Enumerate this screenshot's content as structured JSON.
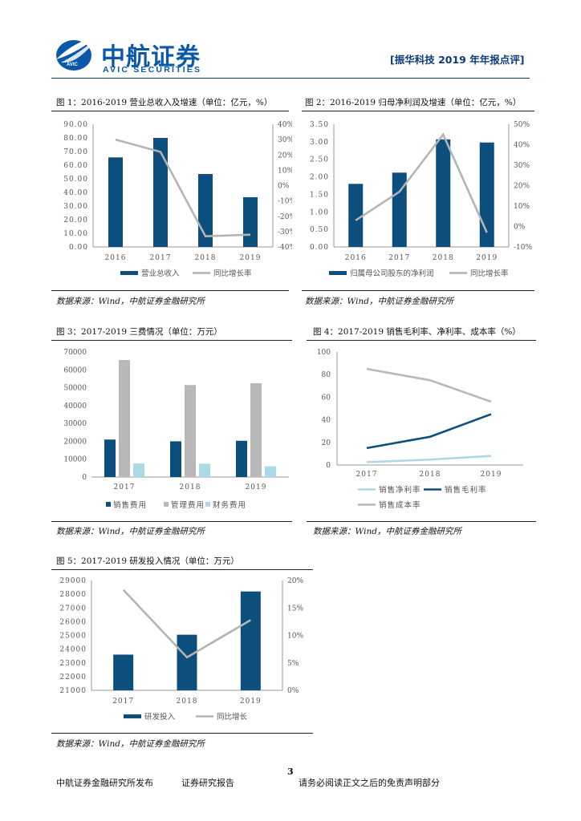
{
  "header": {
    "logo_cn": "中航证券",
    "logo_en": "AVIC SECURITIES",
    "logo_mark": "AVIC",
    "report_tag": "[振华科技 2019 年年报点评]"
  },
  "figures": [
    {
      "title": "图 1：2016-2019 营业总收入及增速（单位：亿元，%）",
      "source": "数据来源：Wind，中航证券金融研究所",
      "chart_data": {
        "type": "bar",
        "categories": [
          "2016",
          "2017",
          "2018",
          "2019"
        ],
        "series": [
          {
            "name": "营业总收入",
            "kind": "bar",
            "axis": "left",
            "values": [
              65.7,
              80.0,
              53.5,
              36.5
            ]
          },
          {
            "name": "同比增长率",
            "kind": "line",
            "axis": "right",
            "values": [
              30,
              22,
              -33,
              -32
            ]
          }
        ],
        "ylim_left": [
          0,
          90
        ],
        "yticks_left": [
          "0.00",
          "10.00",
          "20.00",
          "30.00",
          "40.00",
          "50.00",
          "60.00",
          "70.00",
          "80.00",
          "90.00"
        ],
        "ylim_right": [
          -40,
          40
        ],
        "yticks_right": [
          "-40%",
          "-30%",
          "-20%",
          "-10%",
          "0%",
          "10%",
          "20%",
          "30%",
          "40%"
        ],
        "legend": "bottom"
      }
    },
    {
      "title": "图 2：2016-2019 归母净利润及增速（单位：亿元，%）",
      "source": "数据来源：Wind，中航证券金融研究所",
      "chart_data": {
        "type": "bar",
        "categories": [
          "2016",
          "2017",
          "2018",
          "2019"
        ],
        "series": [
          {
            "name": "归属母公司股东的净利润",
            "kind": "bar",
            "axis": "left",
            "values": [
              1.8,
              2.12,
              3.07,
              2.98
            ]
          },
          {
            "name": "同比增长率",
            "kind": "line",
            "axis": "right",
            "values": [
              3,
              17,
              45,
              -3
            ]
          }
        ],
        "ylim_left": [
          0,
          3.5
        ],
        "yticks_left": [
          "0.00",
          "0.50",
          "1.00",
          "1.50",
          "2.00",
          "2.50",
          "3.00",
          "3.50"
        ],
        "ylim_right": [
          -10,
          50
        ],
        "yticks_right": [
          "-10%",
          "0%",
          "10%",
          "20%",
          "30%",
          "40%",
          "50%"
        ],
        "legend": "bottom"
      }
    },
    {
      "title": "图 3：2017-2019 三费情况（单位：万元）",
      "source": "数据来源：Wind，中航证券金融研究所",
      "chart_data": {
        "type": "bar",
        "categories": [
          "2017",
          "2018",
          "2019"
        ],
        "series": [
          {
            "name": "销售费用",
            "kind": "bar",
            "values": [
              21000,
              20000,
              20300
            ]
          },
          {
            "name": "管理费用",
            "kind": "bar",
            "values": [
              65500,
              51500,
              52500
            ]
          },
          {
            "name": "财务费用",
            "kind": "bar",
            "values": [
              7600,
              7500,
              6000
            ]
          }
        ],
        "ylim": [
          0,
          70000
        ],
        "yticks": [
          "0",
          "10000",
          "20000",
          "30000",
          "40000",
          "50000",
          "60000",
          "70000"
        ],
        "legend": "bottom"
      }
    },
    {
      "title": "图 4：2017-2019 销售毛利率、净利率、成本率（%）",
      "source": "数据来源：Wind，中航证券金融研究所",
      "chart_data": {
        "type": "line",
        "categories": [
          "2017",
          "2018",
          "2019"
        ],
        "series": [
          {
            "name": "销售净利率",
            "values": [
              2.5,
              4.8,
              8.0
            ]
          },
          {
            "name": "销售毛利率",
            "values": [
              15,
              25,
              45
            ]
          },
          {
            "name": "销售成本率",
            "values": [
              85,
              75,
              56
            ]
          }
        ],
        "ylim": [
          0,
          100
        ],
        "yticks": [
          "0",
          "20",
          "40",
          "60",
          "80",
          "100"
        ],
        "legend": "bottom"
      }
    },
    {
      "title": "图 5：2017-2019 研发投入情况（单位：万元）",
      "source": "数据来源：Wind，中航证券金融研究所",
      "chart_data": {
        "type": "bar",
        "categories": [
          "2017",
          "2018",
          "2019"
        ],
        "series": [
          {
            "name": "研发投入",
            "kind": "bar",
            "axis": "left",
            "values": [
              23600,
              25050,
              28200
            ]
          },
          {
            "name": "同比增长",
            "kind": "line",
            "axis": "right",
            "values": [
              18.3,
              6.0,
              12.8
            ]
          }
        ],
        "ylim_left": [
          21000,
          29000
        ],
        "yticks_left": [
          "21000",
          "22000",
          "23000",
          "24000",
          "25000",
          "26000",
          "27000",
          "28000",
          "29000"
        ],
        "ylim_right": [
          0,
          20
        ],
        "yticks_right": [
          "0%",
          "5%",
          "10%",
          "15%",
          "20%"
        ],
        "legend": "bottom"
      }
    }
  ],
  "colors": {
    "bar_dark": "#0d4f7c",
    "line_gray": "#b4b4b4",
    "bar_gray": "#b8b8b8",
    "light_blue": "#add8e6"
  },
  "footer": {
    "page": "3",
    "publisher": "中航证券金融研究所发布",
    "report_type": "证券研究报告",
    "disclaimer": "请务必阅读正文之后的免责声明部分"
  }
}
